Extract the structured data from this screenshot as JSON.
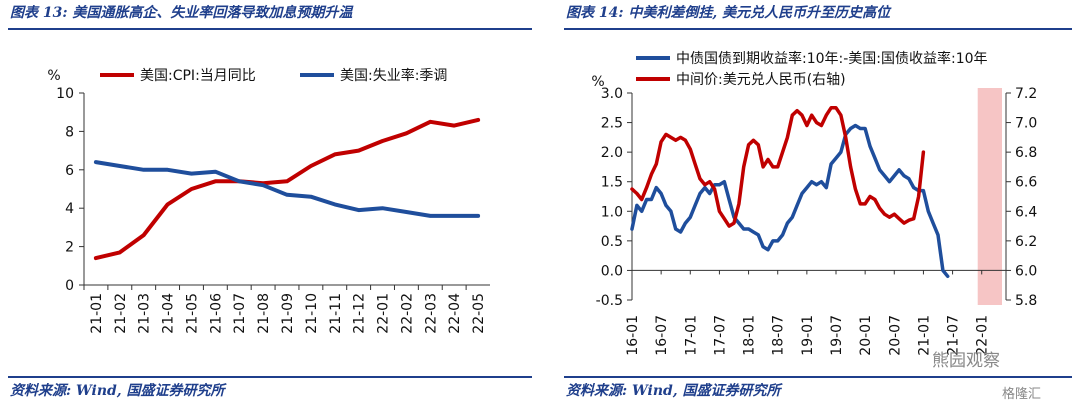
{
  "left": {
    "title": "图表 13: 美国通胀高企、失业率回落导致加息预期升温",
    "source": "资料来源: Wind, 国盛证券研究所",
    "chart_data": {
      "type": "line",
      "unit_label": "%",
      "categories": [
        "21-01",
        "21-02",
        "21-03",
        "21-04",
        "21-05",
        "21-06",
        "21-07",
        "21-08",
        "21-09",
        "21-10",
        "21-11",
        "21-12",
        "22-01",
        "22-02",
        "22-03",
        "22-04",
        "22-05"
      ],
      "ylim": [
        0,
        10
      ],
      "yticks": [
        0,
        2,
        4,
        6,
        8,
        10
      ],
      "legend_position": "top",
      "series": [
        {
          "name": "美国:CPI:当月同比",
          "color": "#c00000",
          "values": [
            1.4,
            1.7,
            2.6,
            4.2,
            5.0,
            5.4,
            5.4,
            5.3,
            5.4,
            6.2,
            6.8,
            7.0,
            7.5,
            7.9,
            8.5,
            8.3,
            8.6
          ]
        },
        {
          "name": "美国:失业率:季调",
          "color": "#1f4e9c",
          "values": [
            6.4,
            6.2,
            6.0,
            6.0,
            5.8,
            5.9,
            5.4,
            5.2,
            4.7,
            4.6,
            4.2,
            3.9,
            4.0,
            3.8,
            3.6,
            3.6,
            3.6
          ]
        }
      ]
    }
  },
  "right": {
    "title": "图表 14: 中美利差倒挂, 美元兑人民币升至历史高位",
    "source": "资料来源: Wind, 国盛证券研究所",
    "chart_data": {
      "type": "line",
      "unit_label": "%",
      "x_labels": [
        "16-01",
        "16-07",
        "17-01",
        "17-07",
        "18-01",
        "18-07",
        "19-01",
        "19-07",
        "20-01",
        "20-07",
        "21-01",
        "21-07",
        "22-01"
      ],
      "y_left": {
        "range": [
          -0.5,
          3.0
        ],
        "ticks": [
          -0.5,
          0.0,
          0.5,
          1.0,
          1.5,
          2.0,
          2.5,
          3.0
        ]
      },
      "y_right": {
        "range": [
          5.8,
          7.2
        ],
        "ticks": [
          5.8,
          6.0,
          6.2,
          6.4,
          6.6,
          6.8,
          7.0,
          7.2
        ]
      },
      "legend_position": "top",
      "highlight": {
        "from": "22-01",
        "color": "#f4b6b6"
      },
      "series": [
        {
          "name": "中债国债到期收益率:10年:-美国:国债收益率:10年",
          "axis": "left",
          "color": "#1f4e9c",
          "x": [
            0,
            1,
            2,
            3,
            4,
            5,
            6,
            7,
            8,
            9,
            10,
            11,
            12,
            13,
            14,
            15,
            16,
            17,
            18,
            19,
            20,
            21,
            22,
            23,
            24,
            25,
            26,
            27,
            28,
            29,
            30,
            31,
            32,
            33,
            34,
            35,
            36,
            37,
            38,
            39,
            40,
            41,
            42,
            43,
            44,
            45,
            46,
            47,
            48,
            49,
            50,
            51,
            52,
            53,
            54,
            55,
            56,
            57,
            58,
            59,
            60,
            61,
            62,
            63,
            64,
            65,
            66,
            67,
            68,
            69,
            70,
            71,
            72,
            73,
            74,
            75,
            76,
            77
          ],
          "values": [
            0.7,
            1.1,
            1.0,
            1.2,
            1.2,
            1.4,
            1.3,
            1.1,
            1.0,
            0.7,
            0.65,
            0.8,
            0.9,
            1.1,
            1.3,
            1.4,
            1.3,
            1.45,
            1.45,
            1.5,
            1.2,
            0.9,
            0.8,
            0.7,
            0.7,
            0.65,
            0.6,
            0.4,
            0.35,
            0.5,
            0.5,
            0.6,
            0.8,
            0.9,
            1.1,
            1.3,
            1.4,
            1.5,
            1.45,
            1.5,
            1.4,
            1.8,
            1.9,
            2.0,
            2.3,
            2.4,
            2.45,
            2.4,
            2.4,
            2.1,
            1.9,
            1.7,
            1.6,
            1.5,
            1.6,
            1.7,
            1.6,
            1.55,
            1.4,
            1.35,
            1.35,
            1.0,
            0.8,
            0.6,
            0.0,
            -0.1,
            null,
            null,
            null,
            null,
            null,
            null,
            null,
            null,
            null,
            null,
            null,
            null
          ]
        },
        {
          "name": "中间价:美元兑人民币(右轴)",
          "axis": "right",
          "color": "#c00000",
          "x": [
            0,
            1,
            2,
            3,
            4,
            5,
            6,
            7,
            8,
            9,
            10,
            11,
            12,
            13,
            14,
            15,
            16,
            17,
            18,
            19,
            20,
            21,
            22,
            23,
            24,
            25,
            26,
            27,
            28,
            29,
            30,
            31,
            32,
            33,
            34,
            35,
            36,
            37,
            38,
            39,
            40,
            41,
            42,
            43,
            44,
            45,
            46,
            47,
            48,
            49,
            50,
            51,
            52,
            53,
            54,
            55,
            56,
            57,
            58,
            59,
            60,
            61,
            62,
            63,
            64,
            65,
            66,
            67,
            68,
            69,
            70,
            71,
            72,
            73,
            74,
            75,
            76,
            77
          ],
          "values": [
            6.55,
            6.52,
            6.48,
            6.56,
            6.65,
            6.72,
            6.87,
            6.92,
            6.9,
            6.88,
            6.9,
            6.88,
            6.82,
            6.72,
            6.62,
            6.58,
            6.6,
            6.55,
            6.4,
            6.35,
            6.3,
            6.32,
            6.45,
            6.7,
            6.85,
            6.88,
            6.85,
            6.7,
            6.75,
            6.7,
            6.7,
            6.8,
            6.9,
            7.05,
            7.08,
            7.05,
            6.98,
            7.05,
            7.0,
            6.98,
            7.05,
            7.1,
            7.1,
            7.05,
            6.9,
            6.7,
            6.55,
            6.45,
            6.45,
            6.5,
            6.48,
            6.42,
            6.38,
            6.36,
            6.38,
            6.35,
            6.32,
            6.34,
            6.35,
            6.5,
            6.8,
            null,
            null,
            null,
            null,
            null,
            null,
            null,
            null,
            null,
            null,
            null,
            null,
            null,
            null,
            null,
            null,
            null
          ]
        }
      ]
    }
  },
  "watermark": {
    "main": "熊园观察",
    "corner": "格隆汇"
  }
}
